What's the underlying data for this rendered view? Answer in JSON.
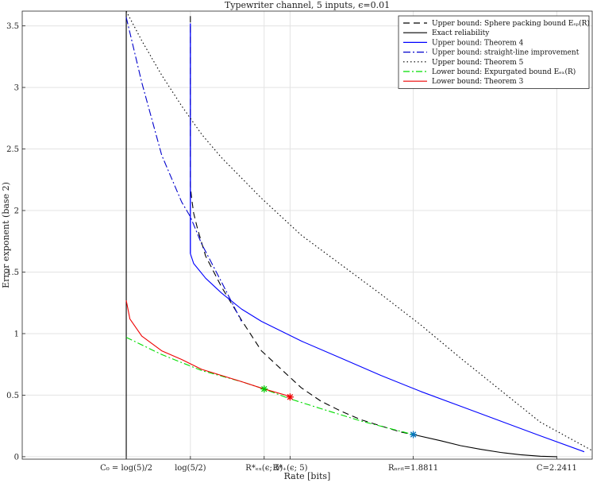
{
  "chart_data": {
    "type": "line",
    "title": "Typewriter channel, 5 inputs, ϵ=0.01",
    "xlabel": "Rate [bits]",
    "ylabel": "Error exponent (base 2)",
    "xlim": [
      0.9,
      2.33
    ],
    "ylim": [
      -0.02,
      3.62
    ],
    "grid": true,
    "legend_position": "top-right",
    "y_ticks": [
      0,
      0.5,
      1,
      1.5,
      2,
      2.5,
      3,
      3.5
    ],
    "y_tick_labels": [
      "0",
      "0.5",
      "1",
      "1.5",
      "2",
      "2.5",
      "3",
      "3.5"
    ],
    "x_ticks": [
      {
        "x": 1.161,
        "label": "C₀ = log(5)/2"
      },
      {
        "x": 1.3219,
        "label": "log(5/2)"
      },
      {
        "x": 1.507,
        "label": "R*ₑₓ(ϵ; 5)"
      },
      {
        "x": 1.572,
        "label": "R*₊(ϵ; 5)"
      },
      {
        "x": 1.8811,
        "label": "Rₙᵣᵢₜ=1.8811"
      },
      {
        "x": 2.2411,
        "label": "C=2.2411"
      }
    ],
    "series": [
      {
        "name": "Upper bound: Sphere packing bound Eₛₚ(R)",
        "color": "#000000",
        "dash": "8,5",
        "x": [
          1.3219,
          1.3219,
          1.3219,
          1.325,
          1.33,
          1.34,
          1.36,
          1.4,
          1.45,
          1.5,
          1.55,
          1.6,
          1.65,
          1.7,
          1.75,
          1.8,
          1.85,
          1.8811
        ],
        "y": [
          3.58,
          2.75,
          2.2,
          2.1,
          1.98,
          1.85,
          1.63,
          1.38,
          1.11,
          0.86,
          0.71,
          0.56,
          0.45,
          0.37,
          0.3,
          0.25,
          0.2,
          0.18
        ]
      },
      {
        "name": "Exact reliability",
        "color": "#000000",
        "dash": "",
        "x": [
          1.8811,
          1.95,
          2.0,
          2.05,
          2.1,
          2.15,
          2.2,
          2.2411
        ],
        "y": [
          0.18,
          0.13,
          0.09,
          0.06,
          0.035,
          0.016,
          0.004,
          0.0
        ]
      },
      {
        "name": "Upper bound: Theorem 4",
        "color": "#0000ff",
        "dash": "",
        "x": [
          1.3219,
          1.3219,
          1.33,
          1.36,
          1.4,
          1.45,
          1.5,
          1.55,
          1.6,
          1.7,
          1.8,
          1.9,
          2.0,
          2.1,
          2.2,
          2.31
        ],
        "y": [
          3.52,
          1.65,
          1.57,
          1.45,
          1.33,
          1.2,
          1.1,
          1.02,
          0.94,
          0.8,
          0.66,
          0.53,
          0.41,
          0.29,
          0.17,
          0.04
        ]
      },
      {
        "name": "Upper bound: straight-line improvement",
        "color": "#0000cc",
        "dash": "9,3,2,3",
        "x": [
          1.161,
          1.2,
          1.25,
          1.3,
          1.3219,
          1.35,
          1.4,
          1.45
        ],
        "y": [
          3.57,
          3.04,
          2.45,
          2.07,
          1.95,
          1.73,
          1.42,
          1.1
        ]
      },
      {
        "name": "Upper bound: Theorem 5",
        "color": "#000000",
        "dash": "1.5,3",
        "x": [
          1.161,
          1.2,
          1.25,
          1.3,
          1.35,
          1.4,
          1.5,
          1.6,
          1.7,
          1.8,
          1.9,
          2.0,
          2.1,
          2.2,
          2.33
        ],
        "y": [
          3.62,
          3.38,
          3.1,
          2.85,
          2.62,
          2.43,
          2.1,
          1.8,
          1.56,
          1.32,
          1.07,
          0.8,
          0.54,
          0.28,
          0.05
        ]
      },
      {
        "name": "Lower bound: Expurgated bound Eₑₓ(R)",
        "color": "#00dd00",
        "dash": "8,3,2,3",
        "x": [
          1.161,
          1.25,
          1.35,
          1.45,
          1.507,
          1.572,
          1.65,
          1.75,
          1.8811
        ],
        "y": [
          0.97,
          0.83,
          0.7,
          0.61,
          0.55,
          0.47,
          0.39,
          0.29,
          0.18
        ]
      },
      {
        "name": "Lower bound: Theorem 3",
        "color": "#ee0000",
        "dash": "",
        "x": [
          1.161,
          1.17,
          1.2,
          1.25,
          1.3,
          1.35,
          1.4,
          1.45,
          1.507,
          1.572
        ],
        "y": [
          1.27,
          1.12,
          0.98,
          0.86,
          0.79,
          0.71,
          0.66,
          0.61,
          0.55,
          0.49
        ]
      }
    ],
    "markers": [
      {
        "x": 1.507,
        "y": 0.55,
        "color": "#00cc00"
      },
      {
        "x": 1.572,
        "y": 0.485,
        "color": "#ee0000"
      },
      {
        "x": 1.8811,
        "y": 0.18,
        "color": "#0072bd"
      }
    ],
    "vlines": [
      {
        "x": 1.161,
        "color": "#000000",
        "dash": "",
        "y0": -0.02,
        "y1": 3.62
      },
      {
        "x": 1.3219,
        "color": "#0000ff",
        "dash": "",
        "y0": 1.65,
        "y1": 3.52
      }
    ]
  }
}
